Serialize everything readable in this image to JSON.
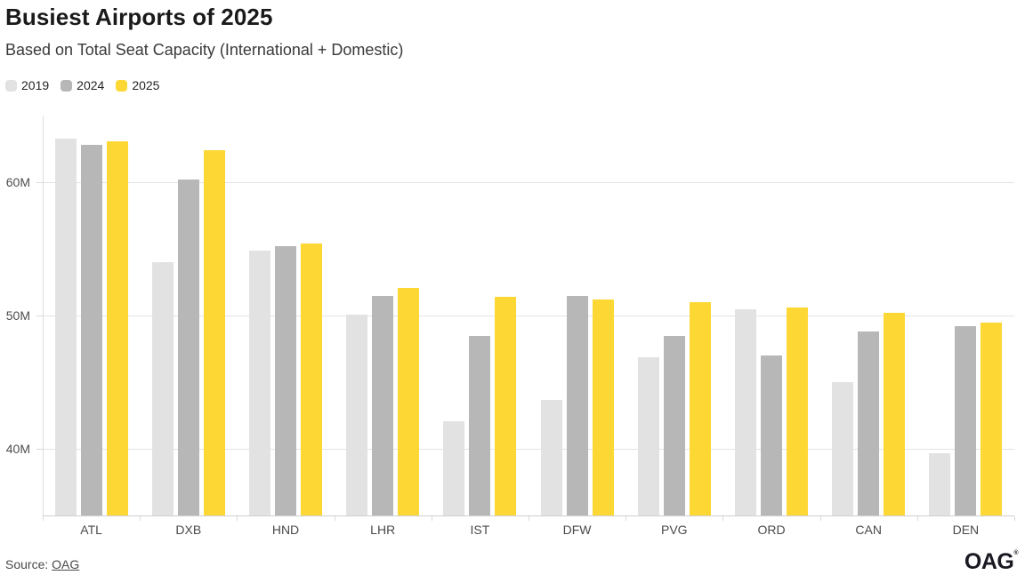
{
  "header": {
    "title": "Busiest Airports of 2025",
    "subtitle": "Based on Total Seat Capacity (International + Domestic)"
  },
  "legend": [
    {
      "label": "2019",
      "color": "#e2e2e2"
    },
    {
      "label": "2024",
      "color": "#b7b7b7"
    },
    {
      "label": "2025",
      "color": "#fdd835"
    }
  ],
  "chart_data": {
    "type": "bar",
    "title": "Busiest Airports of 2025",
    "subtitle": "Based on Total Seat Capacity (International + Domestic)",
    "unit": "millions of seats",
    "categories": [
      "ATL",
      "DXB",
      "HND",
      "LHR",
      "IST",
      "DFW",
      "PVG",
      "ORD",
      "CAN",
      "DEN"
    ],
    "series": [
      {
        "name": "2019",
        "color": "#e2e2e2",
        "values": [
          63.3,
          54.0,
          54.9,
          50.1,
          42.1,
          43.7,
          46.9,
          50.5,
          45.0,
          39.7
        ]
      },
      {
        "name": "2024",
        "color": "#b7b7b7",
        "values": [
          62.8,
          60.2,
          55.2,
          51.5,
          48.5,
          51.5,
          48.5,
          47.0,
          48.8,
          49.2
        ]
      },
      {
        "name": "2025",
        "color": "#fdd835",
        "values": [
          63.1,
          62.4,
          55.4,
          52.1,
          51.4,
          51.2,
          51.0,
          50.6,
          50.2,
          49.5
        ]
      }
    ],
    "y_axis": {
      "min": 35,
      "max": 65,
      "ticks": [
        40,
        50,
        60
      ],
      "tick_labels": [
        "40M",
        "50M",
        "60M"
      ]
    },
    "grid": "horizontal-only",
    "legend_position": "top-left"
  },
  "footer": {
    "source_prefix": "Source: ",
    "source_link": "OAG",
    "logo": "OAG",
    "logo_mark": "®"
  }
}
